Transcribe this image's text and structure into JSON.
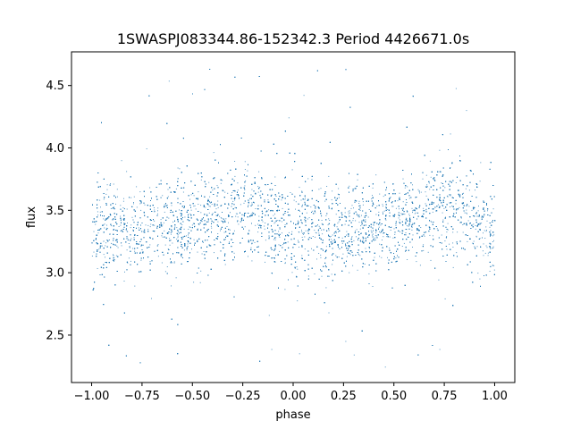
{
  "chart_data": {
    "type": "scatter",
    "title": "1SWASPJ083344.86-152342.3 Period 4426671.0s",
    "xlabel": "phase",
    "ylabel": "flux",
    "xlim": [
      -1.1,
      1.1
    ],
    "ylim": [
      2.12,
      4.77
    ],
    "xticks": [
      -1.0,
      -0.75,
      -0.5,
      -0.25,
      0.0,
      0.25,
      0.5,
      0.75,
      1.0
    ],
    "xtick_labels": [
      "−1.00",
      "−0.75",
      "−0.50",
      "−0.25",
      "0.00",
      "0.25",
      "0.50",
      "0.75",
      "1.00"
    ],
    "yticks": [
      2.5,
      3.0,
      3.5,
      4.0,
      4.5
    ],
    "ytick_labels": [
      "2.5",
      "3.0",
      "3.5",
      "4.0",
      "4.5"
    ],
    "grid": false,
    "legend": "none",
    "marker_color": "#1f77b4",
    "profile": {
      "description_note": "",
      "phase": [
        -1.0,
        -0.9,
        -0.8,
        -0.7,
        -0.6,
        -0.5,
        -0.4,
        -0.3,
        -0.25,
        -0.2,
        -0.1,
        0.0,
        0.1,
        0.2,
        0.3,
        0.4,
        0.5,
        0.6,
        0.7,
        0.75,
        0.8,
        0.9,
        1.0
      ],
      "median_flux": [
        3.32,
        3.33,
        3.32,
        3.36,
        3.38,
        3.4,
        3.45,
        3.52,
        3.54,
        3.5,
        3.42,
        3.35,
        3.32,
        3.31,
        3.36,
        3.38,
        3.4,
        3.45,
        3.52,
        3.54,
        3.5,
        3.42,
        3.32
      ],
      "spread": [
        0.22,
        0.2,
        0.18,
        0.17,
        0.17,
        0.17,
        0.18,
        0.2,
        0.2,
        0.2,
        0.2,
        0.22,
        0.2,
        0.18,
        0.17,
        0.17,
        0.17,
        0.18,
        0.2,
        0.2,
        0.2,
        0.2,
        0.22
      ]
    },
    "n_points": 9000,
    "outlier_fraction": 0.03
  }
}
